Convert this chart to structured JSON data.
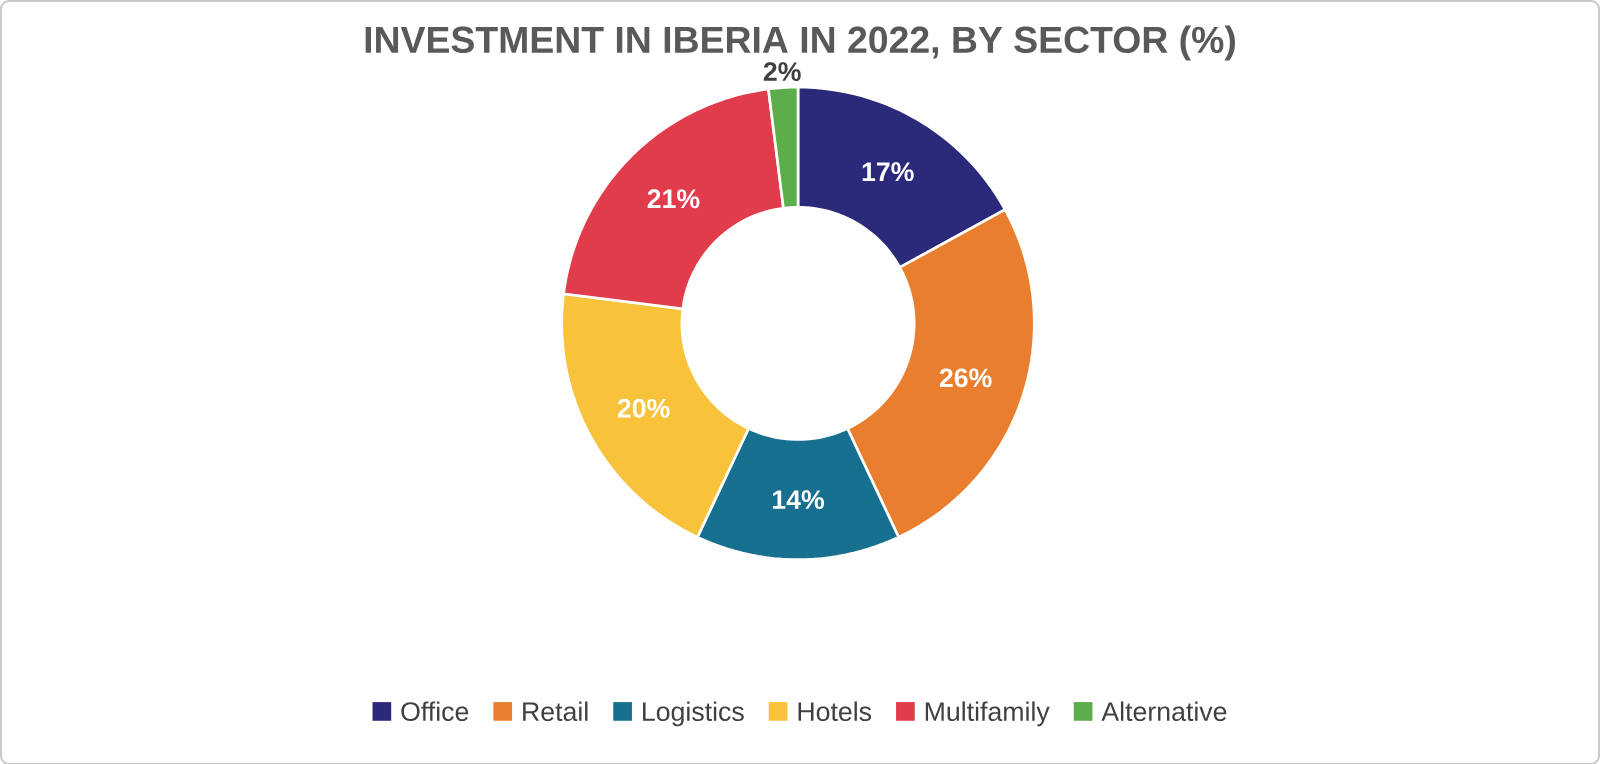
{
  "chart_data": {
    "type": "donut",
    "title": "INVESTMENT IN IBERIA IN 2022, BY SECTOR (%)",
    "categories": [
      "Office",
      "Retail",
      "Logistics",
      "Hotels",
      "Multifamily",
      "Alternative"
    ],
    "values": [
      17,
      26,
      14,
      20,
      21,
      2
    ],
    "colors": [
      "#2b2a7a",
      "#e97f2e",
      "#177090",
      "#f8c23a",
      "#e03c4c",
      "#5cae4b"
    ],
    "value_labels": [
      "17%",
      "26%",
      "14%",
      "20%",
      "21%",
      "2%"
    ],
    "legend": "bottom"
  }
}
